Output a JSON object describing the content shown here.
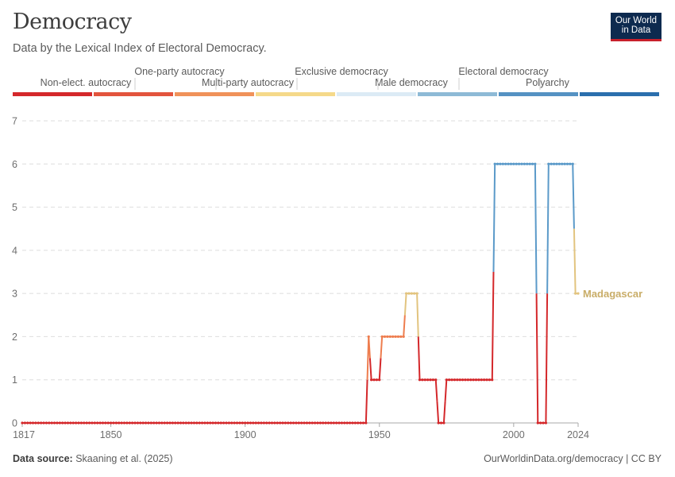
{
  "header": {
    "title": "Democracy",
    "subtitle": "Data by the Lexical Index of Electoral Democracy.",
    "logo_line1": "Our World",
    "logo_line2": "in Data"
  },
  "footer": {
    "source_label": "Data source:",
    "source_text": "Skaaning et al. (2025)",
    "credit": "OurWorldinData.org/democracy | CC BY"
  },
  "legend": {
    "categories": [
      {
        "label": "Non-elect. autocracy",
        "color": "#d4282b"
      },
      {
        "label": "One-party autocracy",
        "color": "#e3543d"
      },
      {
        "label": "Multi-party autocracy",
        "color": "#f0925a"
      },
      {
        "label": "Exclusive democracy",
        "color": "#f5d98a"
      },
      {
        "label": "Male democracy",
        "color": "#dcebf5"
      },
      {
        "label": "Electoral democracy",
        "color": "#8ebad6"
      },
      {
        "label": "Polyarchy",
        "color": "#5592c3"
      },
      {
        "label": "",
        "color": "#2b6fad"
      }
    ]
  },
  "chart_data": {
    "type": "line",
    "title": "Democracy",
    "xlim": [
      1817,
      2024
    ],
    "ylim": [
      0,
      7
    ],
    "x_ticks": [
      "1817",
      "1850",
      "1900",
      "1950",
      "2000",
      "2024"
    ],
    "y_ticks": [
      "0",
      "1",
      "2",
      "3",
      "4",
      "5",
      "6",
      "7"
    ],
    "grid": "horizontal dashed",
    "series": [
      {
        "name": "Madagascar",
        "label_color": "#c9ad68",
        "points": [
          [
            1817,
            0
          ],
          [
            1945,
            0
          ],
          [
            1946,
            2
          ],
          [
            1947,
            1
          ],
          [
            1950,
            1
          ],
          [
            1951,
            2
          ],
          [
            1959,
            2
          ],
          [
            1960,
            3
          ],
          [
            1964,
            3
          ],
          [
            1965,
            1
          ],
          [
            1971,
            1
          ],
          [
            1972,
            0
          ],
          [
            1974,
            0
          ],
          [
            1975,
            1
          ],
          [
            1992,
            1
          ],
          [
            1993,
            6
          ],
          [
            2008,
            6
          ],
          [
            2009,
            0
          ],
          [
            2012,
            0
          ],
          [
            2013,
            6
          ],
          [
            2022,
            6
          ],
          [
            2023,
            3
          ],
          [
            2024,
            3
          ]
        ]
      }
    ]
  }
}
